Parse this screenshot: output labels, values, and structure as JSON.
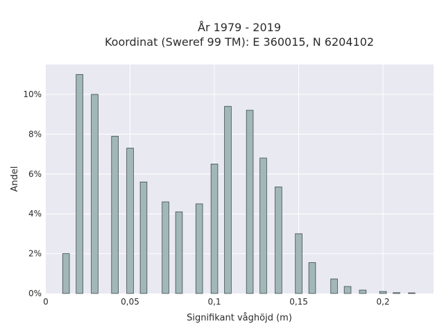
{
  "chart_data": {
    "type": "bar",
    "title": [
      "År 1979 - 2019",
      "Koordinat (Sweref 99 TM): E 360015, N 6204102"
    ],
    "xlabel": "Signifikant våghöjd (m)",
    "ylabel": "Andel",
    "xlim": [
      0,
      0.23
    ],
    "ylim": [
      0,
      11.5
    ],
    "x_ticks": [
      {
        "value": 0,
        "label": "0"
      },
      {
        "value": 0.05,
        "label": "0,05"
      },
      {
        "value": 0.1,
        "label": "0,1"
      },
      {
        "value": 0.15,
        "label": "0,15"
      },
      {
        "value": 0.2,
        "label": "0,2"
      }
    ],
    "y_ticks": [
      {
        "value": 0,
        "label": "0%"
      },
      {
        "value": 2,
        "label": "2%"
      },
      {
        "value": 4,
        "label": "4%"
      },
      {
        "value": 6,
        "label": "6%"
      },
      {
        "value": 8,
        "label": "8%"
      },
      {
        "value": 10,
        "label": "10%"
      }
    ],
    "grid": true,
    "bar_width": 0.004,
    "x": [
      0.012,
      0.02,
      0.029,
      0.041,
      0.05,
      0.058,
      0.071,
      0.079,
      0.091,
      0.1,
      0.108,
      0.121,
      0.129,
      0.138,
      0.15,
      0.158,
      0.171,
      0.179,
      0.188,
      0.2,
      0.208,
      0.217
    ],
    "values": [
      2.0,
      11.0,
      10.0,
      7.9,
      7.3,
      5.6,
      4.6,
      4.1,
      4.5,
      6.5,
      9.4,
      9.2,
      6.8,
      5.35,
      3.0,
      1.55,
      0.73,
      0.35,
      0.17,
      0.1,
      0.04,
      0.03
    ],
    "colors": {
      "plot_bg": "#e9e9f1",
      "bar_fill": "#a2b7b8",
      "bar_stroke": "#3c4a4a",
      "grid": "#ffffff",
      "text": "#2a2a2a"
    }
  }
}
